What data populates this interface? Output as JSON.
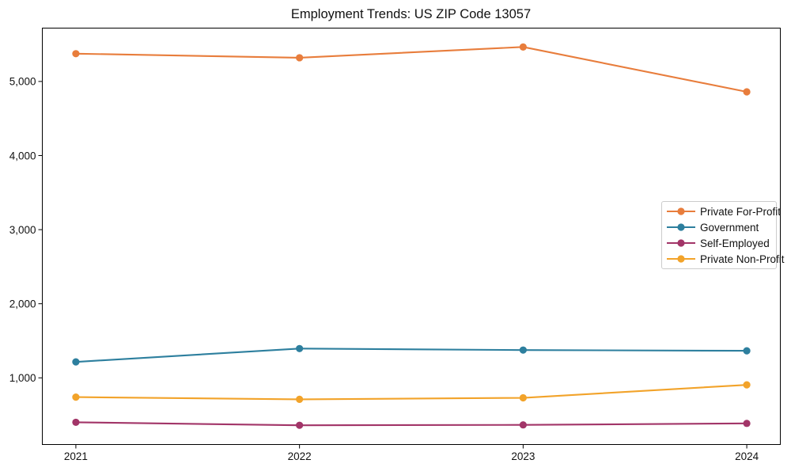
{
  "title": "Employment Trends: US ZIP Code 13057",
  "chart_data": {
    "type": "line",
    "title": "Employment Trends: US ZIP Code 13057",
    "xlabel": "",
    "ylabel": "",
    "x": [
      2021,
      2022,
      2023,
      2024
    ],
    "x_tick_labels": [
      "2021",
      "2022",
      "2023",
      "2024"
    ],
    "y_ticks": [
      1000,
      2000,
      3000,
      4000,
      5000
    ],
    "y_tick_labels": [
      "1,000",
      "2,000",
      "3,000",
      "4,000",
      "5,000"
    ],
    "xlim": [
      2020.85,
      2024.15
    ],
    "ylim": [
      100,
      5720
    ],
    "grid": false,
    "legend_position": "center-right",
    "frame": "full-box",
    "series": [
      {
        "name": "Private For-Profit",
        "color": "#e87d3c",
        "values": [
          5375,
          5320,
          5465,
          4860
        ]
      },
      {
        "name": "Government",
        "color": "#2d7f9e",
        "values": [
          1215,
          1395,
          1375,
          1365
        ]
      },
      {
        "name": "Self-Employed",
        "color": "#a23568",
        "values": [
          400,
          360,
          365,
          385
        ]
      },
      {
        "name": "Private Non-Profit",
        "color": "#f2a32a",
        "values": [
          740,
          710,
          730,
          905
        ]
      }
    ]
  }
}
